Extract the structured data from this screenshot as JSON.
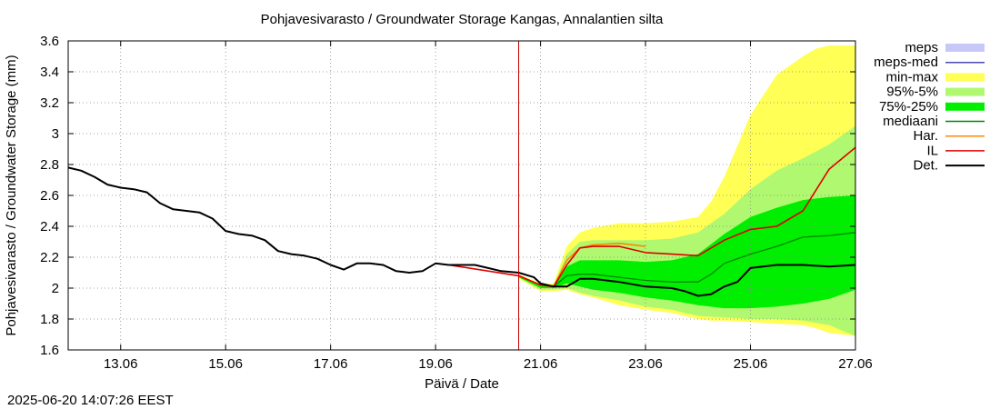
{
  "chart_data": {
    "type": "area",
    "title": "Pohjavesivarasto / Groundwater Storage   Kangas, Annalantien silta",
    "xlabel": "Päivä / Date",
    "ylabel": "Pohjavesivarasto / Groundwater Storage (mm)",
    "timestamp": "2025-06-20 14:07:26 EEST",
    "xlim": [
      "2025-06-12",
      "2025-06-27"
    ],
    "ylim": [
      1.6,
      3.6
    ],
    "y_ticks": [
      1.6,
      1.8,
      2.0,
      2.2,
      2.4,
      2.6,
      2.8,
      3.0,
      3.2,
      3.4,
      3.6
    ],
    "y_tick_labels": [
      "1.6",
      "1.8",
      "2",
      "2.2",
      "2.4",
      "2.6",
      "2.8",
      "3",
      "3.2",
      "3.4",
      "3.6"
    ],
    "x_ticks": [
      "2025-06-13",
      "2025-06-15",
      "2025-06-17",
      "2025-06-19",
      "2025-06-21",
      "2025-06-23",
      "2025-06-25",
      "2025-06-27"
    ],
    "x_tick_labels": [
      "13.06",
      "15.06",
      "17.06",
      "19.06",
      "21.06",
      "23.06",
      "25.06",
      "27.06"
    ],
    "forecast_start": "2025-06-20 14:00",
    "grid": true,
    "legend_position": "right",
    "legend": [
      {
        "label": "meps",
        "kind": "band",
        "color": "#c8c8f8"
      },
      {
        "label": "meps-med",
        "kind": "line",
        "color": "#4a4ab0"
      },
      {
        "label": "min-max",
        "kind": "band",
        "color": "#ffff55"
      },
      {
        "label": "95%-5%",
        "kind": "band",
        "color": "#b0f870"
      },
      {
        "label": "75%-25%",
        "kind": "band",
        "color": "#00ee00"
      },
      {
        "label": "mediaani",
        "kind": "line",
        "color": "#008800"
      },
      {
        "label": "Har.",
        "kind": "line",
        "color": "#ff8800"
      },
      {
        "label": "IL",
        "kind": "line",
        "color": "#dd0000"
      },
      {
        "label": "Det.",
        "kind": "line",
        "color": "#000000"
      }
    ],
    "bands": {
      "min_max": {
        "x": [
          "2025-06-20 14:00",
          "2025-06-21 00:00",
          "2025-06-21 06:00",
          "2025-06-21 12:00",
          "2025-06-21 18:00",
          "2025-06-22 00:00",
          "2025-06-22 12:00",
          "2025-06-23 00:00",
          "2025-06-23 12:00",
          "2025-06-24 00:00",
          "2025-06-24 06:00",
          "2025-06-24 12:00",
          "2025-06-25 00:00",
          "2025-06-25 12:00",
          "2025-06-26 00:00",
          "2025-06-26 06:00",
          "2025-06-26 12:00",
          "2025-06-27 00:00"
        ],
        "upper": [
          2.09,
          2.03,
          2.03,
          2.27,
          2.36,
          2.39,
          2.42,
          2.42,
          2.43,
          2.46,
          2.56,
          2.72,
          3.12,
          3.38,
          3.5,
          3.55,
          3.57,
          3.57
        ],
        "lower": [
          2.06,
          1.98,
          1.98,
          1.99,
          1.96,
          1.94,
          1.89,
          1.86,
          1.84,
          1.8,
          1.79,
          1.79,
          1.78,
          1.77,
          1.76,
          1.74,
          1.71,
          1.69
        ]
      },
      "p95_p5": {
        "x": [
          "2025-06-20 14:00",
          "2025-06-21 00:00",
          "2025-06-21 06:00",
          "2025-06-21 12:00",
          "2025-06-21 18:00",
          "2025-06-22 00:00",
          "2025-06-22 12:00",
          "2025-06-23 00:00",
          "2025-06-23 12:00",
          "2025-06-24 00:00",
          "2025-06-24 12:00",
          "2025-06-25 00:00",
          "2025-06-25 12:00",
          "2025-06-26 00:00",
          "2025-06-26 12:00",
          "2025-06-27 00:00"
        ],
        "upper": [
          2.08,
          2.02,
          2.02,
          2.22,
          2.3,
          2.31,
          2.31,
          2.31,
          2.32,
          2.36,
          2.48,
          2.64,
          2.76,
          2.84,
          2.93,
          3.05
        ],
        "lower": [
          2.07,
          1.99,
          1.99,
          2.0,
          1.97,
          1.95,
          1.92,
          1.88,
          1.86,
          1.82,
          1.81,
          1.8,
          1.8,
          1.79,
          1.76,
          1.69
        ]
      },
      "p75_p25": {
        "x": [
          "2025-06-20 14:00",
          "2025-06-21 00:00",
          "2025-06-21 06:00",
          "2025-06-21 12:00",
          "2025-06-21 18:00",
          "2025-06-22 00:00",
          "2025-06-22 12:00",
          "2025-06-23 00:00",
          "2025-06-23 12:00",
          "2025-06-24 00:00",
          "2025-06-24 12:00",
          "2025-06-25 00:00",
          "2025-06-25 12:00",
          "2025-06-26 00:00",
          "2025-06-26 12:00",
          "2025-06-27 00:00"
        ],
        "upper": [
          2.08,
          2.02,
          2.02,
          2.14,
          2.18,
          2.18,
          2.18,
          2.17,
          2.18,
          2.22,
          2.35,
          2.46,
          2.52,
          2.57,
          2.59,
          2.6
        ],
        "lower": [
          2.07,
          2.0,
          2.0,
          2.03,
          2.01,
          1.99,
          1.97,
          1.94,
          1.92,
          1.89,
          1.87,
          1.87,
          1.88,
          1.9,
          1.93,
          1.99
        ]
      }
    },
    "series": [
      {
        "name": "Det.",
        "color": "#000000",
        "x": [
          "2025-06-12 00:00",
          "2025-06-12 06:00",
          "2025-06-12 12:00",
          "2025-06-12 18:00",
          "2025-06-13 00:00",
          "2025-06-13 06:00",
          "2025-06-13 12:00",
          "2025-06-13 18:00",
          "2025-06-14 00:00",
          "2025-06-14 06:00",
          "2025-06-14 12:00",
          "2025-06-14 18:00",
          "2025-06-15 00:00",
          "2025-06-15 06:00",
          "2025-06-15 12:00",
          "2025-06-15 18:00",
          "2025-06-16 00:00",
          "2025-06-16 06:00",
          "2025-06-16 12:00",
          "2025-06-16 18:00",
          "2025-06-17 00:00",
          "2025-06-17 06:00",
          "2025-06-17 12:00",
          "2025-06-17 18:00",
          "2025-06-18 00:00",
          "2025-06-18 06:00",
          "2025-06-18 12:00",
          "2025-06-18 18:00",
          "2025-06-19 00:00",
          "2025-06-19 06:00",
          "2025-06-19 12:00",
          "2025-06-19 18:00",
          "2025-06-20 00:00",
          "2025-06-20 06:00",
          "2025-06-20 14:00",
          "2025-06-20 21:00",
          "2025-06-21 00:00",
          "2025-06-21 06:00",
          "2025-06-21 12:00",
          "2025-06-21 18:00",
          "2025-06-22 00:00",
          "2025-06-22 12:00",
          "2025-06-23 00:00",
          "2025-06-23 12:00",
          "2025-06-23 18:00",
          "2025-06-24 00:00",
          "2025-06-24 06:00",
          "2025-06-24 12:00",
          "2025-06-24 18:00",
          "2025-06-25 00:00",
          "2025-06-25 12:00",
          "2025-06-26 00:00",
          "2025-06-26 12:00",
          "2025-06-27 00:00"
        ],
        "values": [
          2.78,
          2.76,
          2.72,
          2.67,
          2.65,
          2.64,
          2.62,
          2.55,
          2.51,
          2.5,
          2.49,
          2.45,
          2.37,
          2.35,
          2.34,
          2.31,
          2.24,
          2.22,
          2.21,
          2.19,
          2.15,
          2.12,
          2.16,
          2.16,
          2.15,
          2.11,
          2.1,
          2.11,
          2.16,
          2.15,
          2.15,
          2.15,
          2.13,
          2.11,
          2.1,
          2.07,
          2.03,
          2.01,
          2.01,
          2.06,
          2.06,
          2.04,
          2.01,
          2.0,
          1.98,
          1.95,
          1.96,
          2.01,
          2.04,
          2.13,
          2.15,
          2.15,
          2.14,
          2.15
        ]
      },
      {
        "name": "mediaani",
        "color": "#008800",
        "x": [
          "2025-06-20 14:00",
          "2025-06-21 00:00",
          "2025-06-21 06:00",
          "2025-06-21 12:00",
          "2025-06-21 18:00",
          "2025-06-22 00:00",
          "2025-06-22 12:00",
          "2025-06-23 00:00",
          "2025-06-23 12:00",
          "2025-06-24 00:00",
          "2025-06-24 06:00",
          "2025-06-24 12:00",
          "2025-06-25 00:00",
          "2025-06-25 12:00",
          "2025-06-26 00:00",
          "2025-06-26 12:00",
          "2025-06-27 00:00"
        ],
        "values": [
          2.08,
          2.02,
          2.01,
          2.08,
          2.09,
          2.09,
          2.07,
          2.05,
          2.04,
          2.04,
          2.09,
          2.16,
          2.22,
          2.27,
          2.33,
          2.34,
          2.36
        ]
      },
      {
        "name": "Har.",
        "color": "#ff8800",
        "x": [
          "2025-06-20 14:00",
          "2025-06-21 00:00",
          "2025-06-21 06:00",
          "2025-06-21 12:00",
          "2025-06-21 18:00",
          "2025-06-22 00:00",
          "2025-06-22 12:00",
          "2025-06-23 00:00"
        ],
        "values": [
          2.08,
          2.02,
          2.01,
          2.18,
          2.26,
          2.28,
          2.29,
          2.27
        ]
      },
      {
        "name": "IL",
        "color": "#dd0000",
        "x": [
          "2025-06-19 06:00",
          "2025-06-20 14:00",
          "2025-06-21 00:00",
          "2025-06-21 06:00",
          "2025-06-21 12:00",
          "2025-06-21 18:00",
          "2025-06-22 00:00",
          "2025-06-22 12:00",
          "2025-06-23 00:00",
          "2025-06-23 12:00",
          "2025-06-24 00:00",
          "2025-06-24 12:00",
          "2025-06-25 00:00",
          "2025-06-25 12:00",
          "2025-06-26 00:00",
          "2025-06-26 12:00",
          "2025-06-27 00:00"
        ],
        "values": [
          2.15,
          2.08,
          2.02,
          2.01,
          2.15,
          2.26,
          2.27,
          2.27,
          2.23,
          2.22,
          2.21,
          2.31,
          2.38,
          2.4,
          2.5,
          2.77,
          2.91
        ]
      }
    ]
  }
}
